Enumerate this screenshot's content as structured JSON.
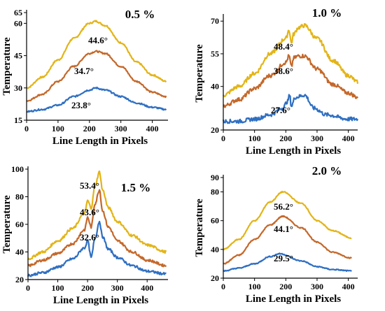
{
  "colors": {
    "max": "#e3b417",
    "avg": "#c4682a",
    "min": "#2f6fc2",
    "axis": "#000000"
  },
  "chart_data": [
    {
      "type": "line",
      "title": "0.5 %",
      "xlabel": "Line Length in Pixels",
      "ylabel": "Temperature",
      "xlim": [
        0,
        450
      ],
      "ylim": [
        15,
        65
      ],
      "xticks": [
        "0",
        "100",
        "200",
        "300",
        "400"
      ],
      "xtick_values": [
        0,
        100,
        200,
        300,
        400
      ],
      "yticks": [
        "15",
        "30",
        "45",
        "60",
        "65"
      ],
      "ytick_values": [
        15,
        30,
        45,
        60,
        65
      ],
      "annotations": [
        "44.6°",
        "34.7°",
        "23.8°"
      ],
      "series": [
        {
          "color": "max",
          "shape": "smooth",
          "x": [
            0,
            50,
            100,
            150,
            200,
            220,
            250,
            300,
            350,
            400,
            445
          ],
          "y": [
            30,
            35,
            43,
            53,
            60,
            61,
            59,
            51,
            42,
            36,
            33
          ]
        },
        {
          "color": "avg",
          "shape": "smooth",
          "x": [
            0,
            50,
            100,
            150,
            200,
            220,
            250,
            300,
            350,
            400,
            445
          ],
          "y": [
            24,
            27,
            33,
            40,
            46,
            47,
            46,
            40,
            33,
            28,
            26
          ]
        },
        {
          "color": "min",
          "shape": "smooth",
          "x": [
            0,
            50,
            100,
            150,
            200,
            220,
            250,
            300,
            350,
            400,
            445
          ],
          "y": [
            19,
            20,
            22,
            26,
            29,
            30,
            29,
            26,
            23,
            21,
            20
          ]
        }
      ]
    },
    {
      "type": "line",
      "title": "1.0 %",
      "xlabel": "Line Length in Pixels",
      "ylabel": "Temperature",
      "xlim": [
        0,
        430
      ],
      "ylim": [
        20,
        72
      ],
      "xticks": [
        "0",
        "100",
        "200",
        "300",
        "400"
      ],
      "xtick_values": [
        0,
        100,
        200,
        300,
        400
      ],
      "yticks": [
        "20",
        "40",
        "55",
        "70"
      ],
      "ytick_values": [
        20,
        40,
        55,
        70
      ],
      "annotations": [
        "48.4°",
        "38.6°",
        "27.6°"
      ],
      "series": [
        {
          "color": "max",
          "shape": "noisy",
          "x": [
            0,
            50,
            100,
            150,
            200,
            210,
            218,
            225,
            240,
            260,
            300,
            350,
            400,
            430
          ],
          "y": [
            36,
            40,
            46,
            55,
            62,
            66,
            60,
            64,
            67,
            68,
            62,
            52,
            45,
            42
          ]
        },
        {
          "color": "avg",
          "shape": "noisy",
          "x": [
            0,
            50,
            100,
            150,
            200,
            210,
            218,
            225,
            240,
            260,
            300,
            350,
            400,
            430
          ],
          "y": [
            31,
            34,
            39,
            45,
            51,
            54,
            49,
            53,
            54,
            54,
            48,
            41,
            37,
            35
          ]
        },
        {
          "color": "min",
          "shape": "noisy",
          "x": [
            0,
            50,
            100,
            150,
            190,
            205,
            212,
            218,
            230,
            260,
            290,
            330,
            400,
            430
          ],
          "y": [
            24,
            24,
            25,
            27,
            30,
            33,
            36,
            31,
            35,
            36,
            30,
            27,
            25,
            25
          ]
        }
      ]
    },
    {
      "type": "line",
      "title": "1.5 %",
      "xlabel": "Line Length in Pixels",
      "ylabel": "Temperature",
      "xlim": [
        0,
        470
      ],
      "ylim": [
        20,
        100
      ],
      "xticks": [
        "0",
        "100",
        "200",
        "300",
        "400"
      ],
      "xtick_values": [
        0,
        100,
        200,
        300,
        400
      ],
      "yticks": [
        "20",
        "40",
        "60",
        "80",
        "100"
      ],
      "ytick_values": [
        20,
        40,
        60,
        80,
        100
      ],
      "annotations": [
        "53.4°",
        "43.6°",
        "32.6°"
      ],
      "series": [
        {
          "color": "max",
          "shape": "noisy",
          "x": [
            0,
            50,
            100,
            150,
            190,
            200,
            212,
            225,
            240,
            250,
            270,
            300,
            350,
            400,
            465
          ],
          "y": [
            35,
            40,
            48,
            57,
            68,
            77,
            72,
            88,
            98,
            85,
            72,
            62,
            52,
            45,
            40
          ]
        },
        {
          "color": "avg",
          "shape": "noisy",
          "x": [
            0,
            50,
            100,
            150,
            190,
            200,
            212,
            225,
            240,
            250,
            270,
            300,
            350,
            400,
            465
          ],
          "y": [
            30,
            34,
            39,
            46,
            56,
            65,
            58,
            75,
            85,
            70,
            58,
            48,
            40,
            34,
            30
          ]
        },
        {
          "color": "min",
          "shape": "noisy",
          "x": [
            0,
            50,
            100,
            150,
            190,
            200,
            212,
            225,
            240,
            250,
            270,
            300,
            350,
            400,
            465
          ],
          "y": [
            23,
            25,
            29,
            35,
            43,
            48,
            36,
            50,
            62,
            51,
            42,
            36,
            30,
            26,
            24
          ]
        }
      ]
    },
    {
      "type": "line",
      "title": "2.0 %",
      "xlabel": "Line Length in Pixels",
      "ylabel": "Temperature",
      "xlim": [
        0,
        430
      ],
      "ylim": [
        20,
        90
      ],
      "xticks": [
        "0",
        "100",
        "200",
        "300",
        "400"
      ],
      "xtick_values": [
        0,
        100,
        200,
        300,
        400
      ],
      "yticks": [
        "20",
        "40",
        "60",
        "80",
        "90"
      ],
      "ytick_values": [
        20,
        40,
        60,
        80,
        90
      ],
      "annotations": [
        "56.2°",
        "44.1°",
        "29.5°"
      ],
      "series": [
        {
          "color": "max",
          "shape": "smooth",
          "x": [
            0,
            50,
            100,
            150,
            190,
            250,
            300,
            350,
            410
          ],
          "y": [
            40,
            47,
            60,
            73,
            80,
            72,
            60,
            53,
            48
          ]
        },
        {
          "color": "avg",
          "shape": "smooth",
          "x": [
            0,
            50,
            100,
            150,
            190,
            250,
            300,
            350,
            410
          ],
          "y": [
            30,
            36,
            47,
            57,
            63,
            55,
            45,
            38,
            34
          ]
        },
        {
          "color": "min",
          "shape": "smooth",
          "x": [
            0,
            50,
            100,
            150,
            180,
            250,
            300,
            350,
            410
          ],
          "y": [
            25,
            27,
            30,
            35,
            37,
            32,
            28,
            26,
            25
          ]
        }
      ]
    }
  ]
}
